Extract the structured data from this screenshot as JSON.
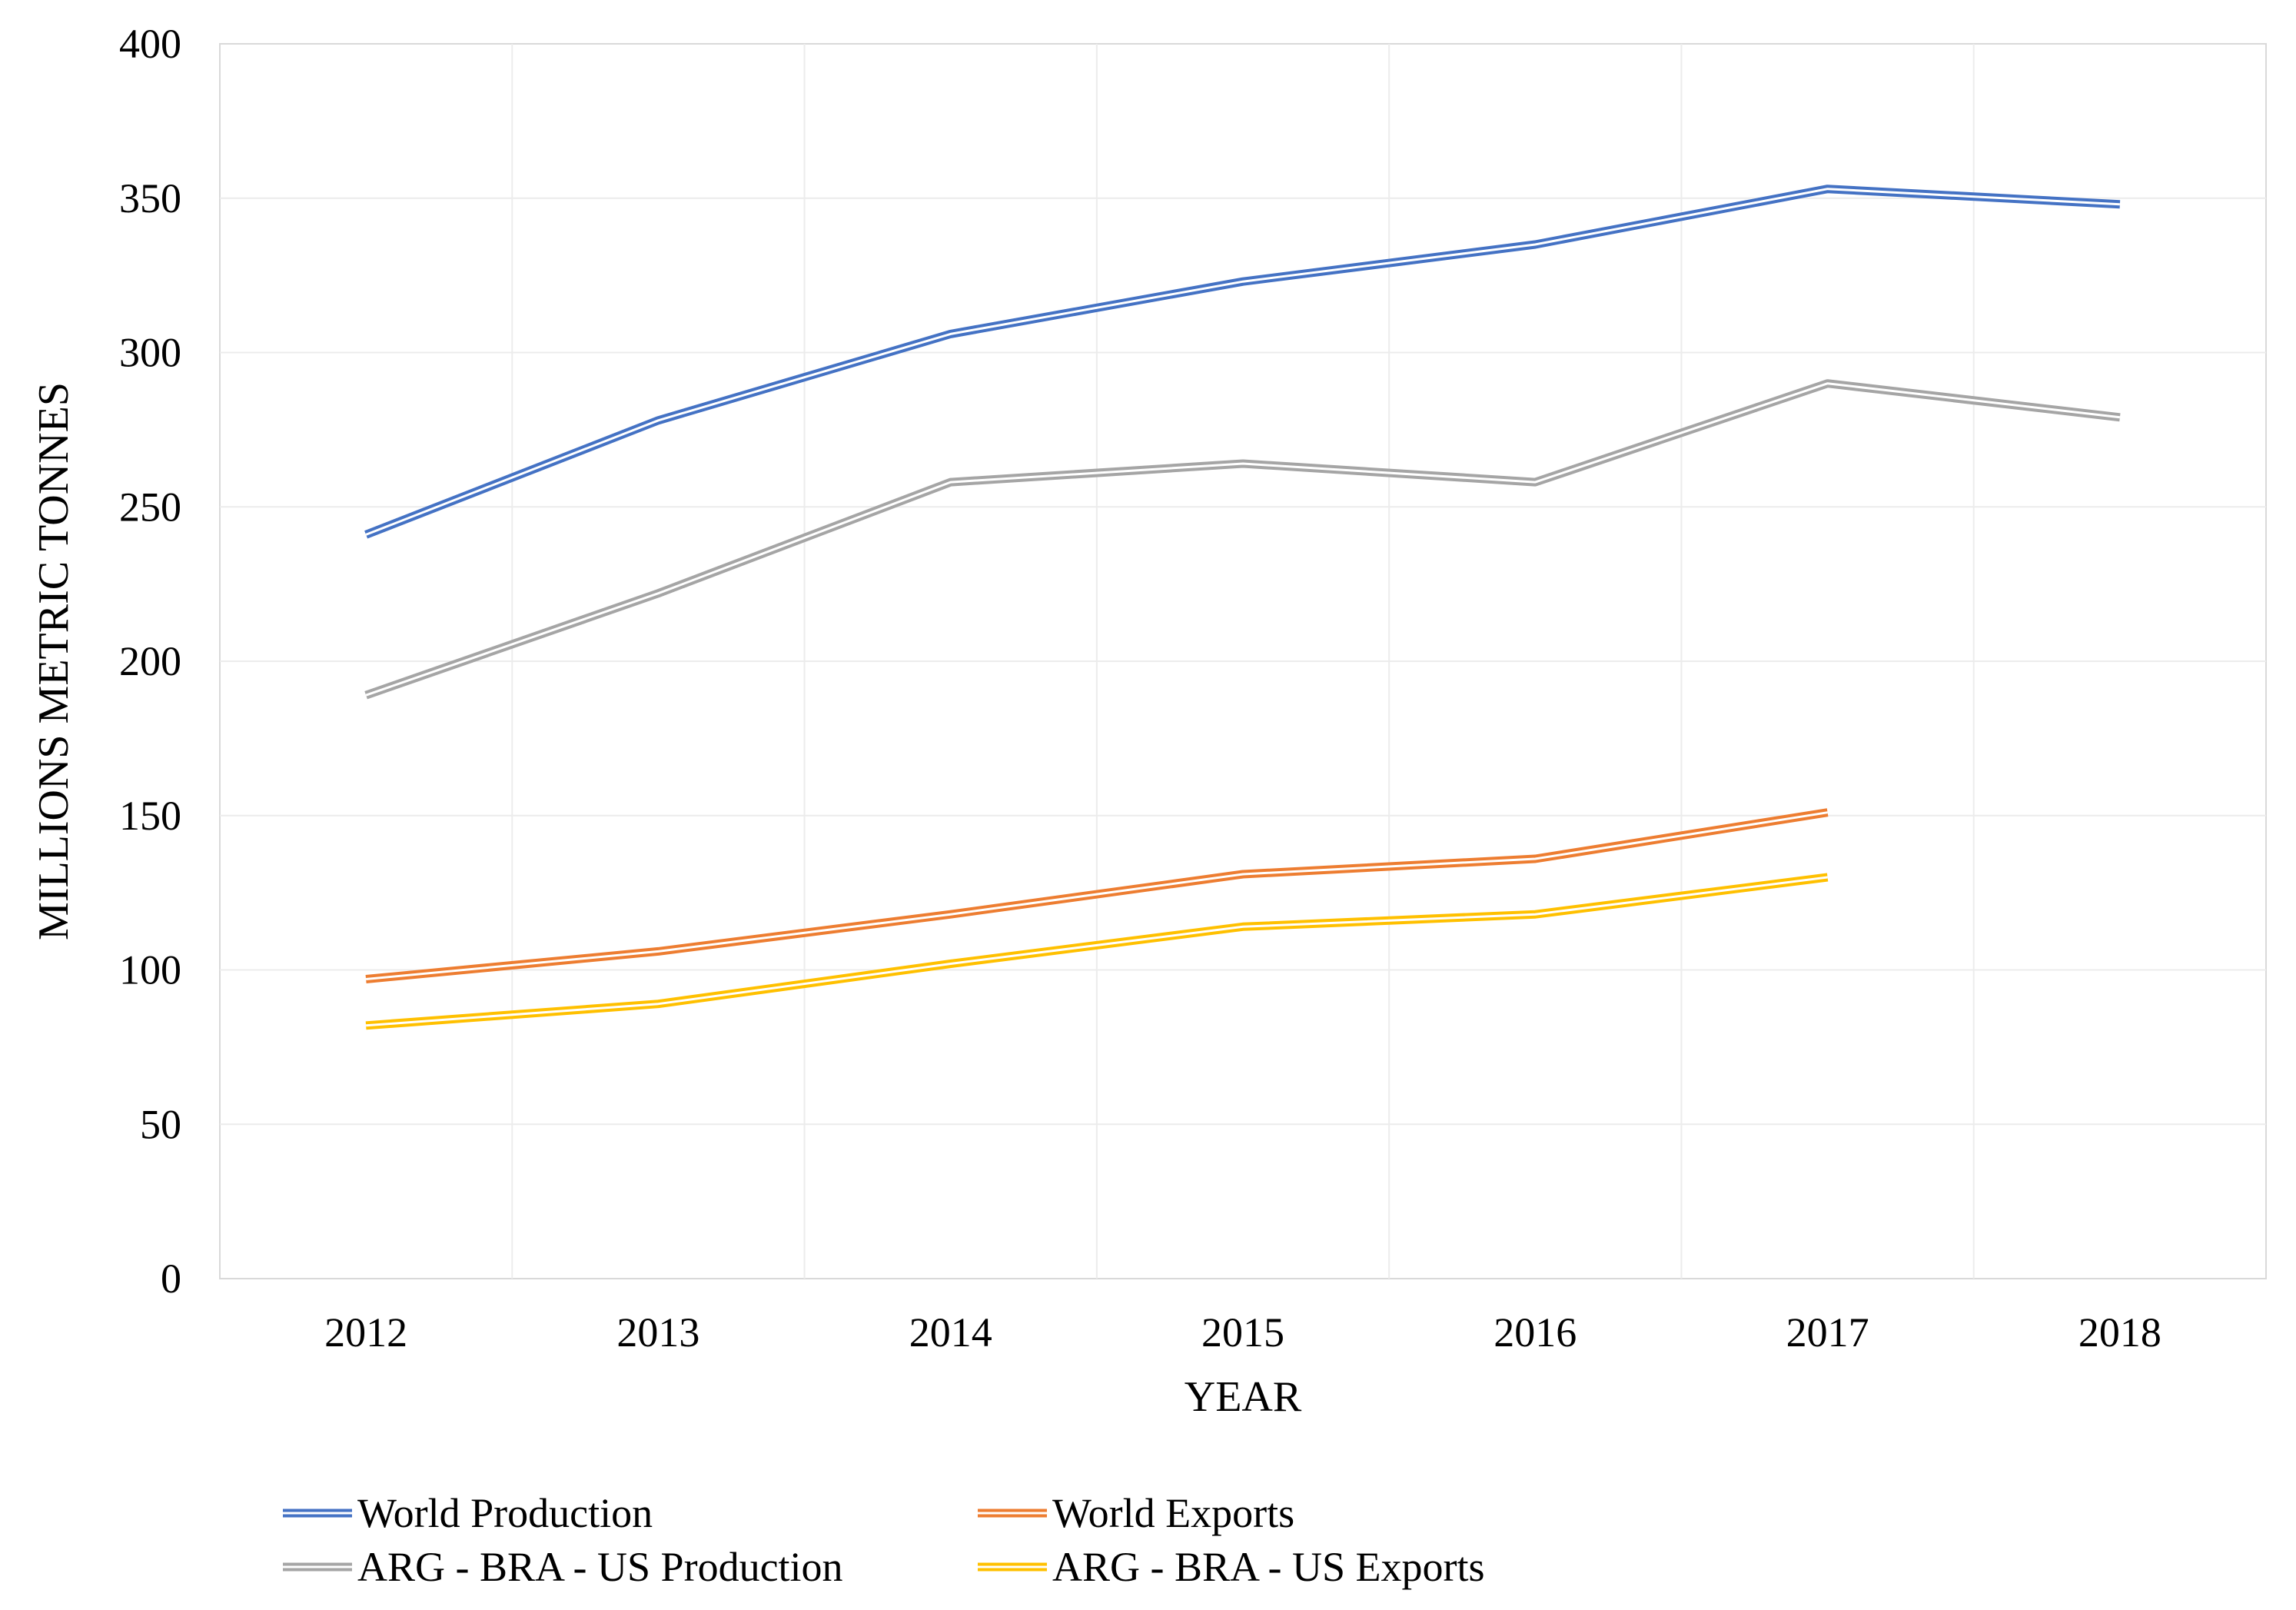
{
  "chart_data": {
    "type": "line",
    "title": "",
    "xlabel": "YEAR",
    "ylabel": "MILLIONS METRIC TONNES",
    "categories": [
      "2012",
      "2013",
      "2014",
      "2015",
      "2016",
      "2017",
      "2018"
    ],
    "ylim": [
      0,
      400
    ],
    "yticks": [
      0,
      50,
      100,
      150,
      200,
      250,
      300,
      350,
      400
    ],
    "grid": true,
    "legend_position": "bottom",
    "series": [
      {
        "name": "World Production",
        "color": "#4472C4",
        "values": [
          241,
          278,
          306,
          323,
          335,
          353,
          348
        ]
      },
      {
        "name": "World Exports",
        "color": "#ED7D31",
        "values": [
          97,
          106,
          118,
          131,
          136,
          151,
          null
        ]
      },
      {
        "name": "ARG - BRA - US Production",
        "color": "#A5A5A5",
        "values": [
          189,
          222,
          258,
          264,
          258,
          290,
          279
        ]
      },
      {
        "name": "ARG - BRA - US Exports",
        "color": "#FFC000",
        "values": [
          82,
          89,
          102,
          114,
          118,
          130,
          null
        ]
      }
    ]
  }
}
